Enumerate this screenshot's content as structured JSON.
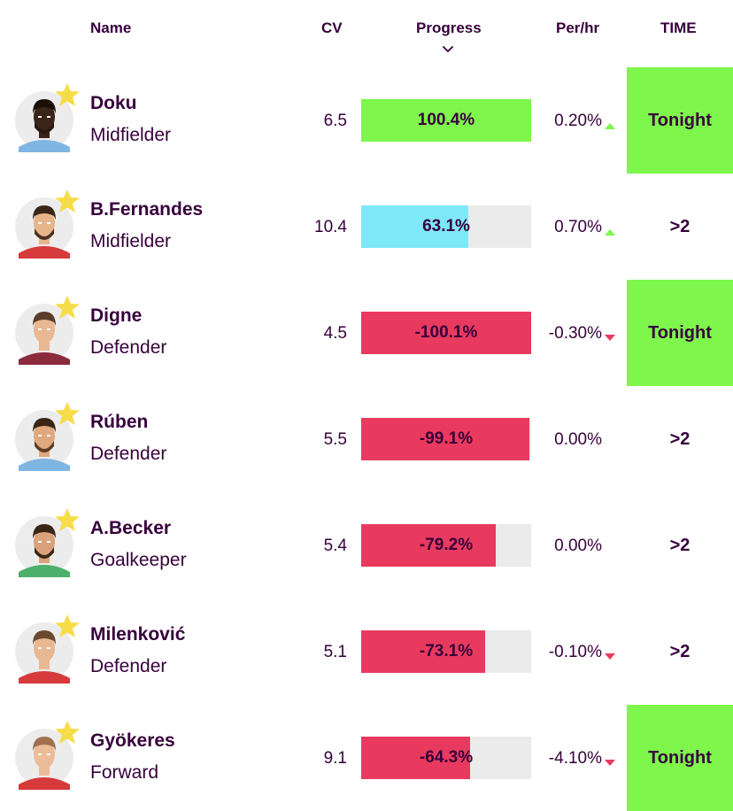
{
  "headers": {
    "name": "Name",
    "cv": "CV",
    "progress": "Progress",
    "per_hr": "Per/hr",
    "time": "TIME"
  },
  "sort_icon": "chevron-down-icon",
  "colors": {
    "positive_bar": "#7ef64c",
    "highlight_bar": "#7ee8f8",
    "negative_bar": "#e83a5e",
    "tonight_bg": "#7ef64c",
    "up_arrow": "#7ef64c",
    "down_arrow": "#e83a5e",
    "track": "#ebebeb"
  },
  "players": [
    {
      "name": "Doku",
      "position": "Midfielder",
      "cv": "6.5",
      "progress": "100.4%",
      "progress_value": 100.4,
      "bar_color": "#7ef64c",
      "per_hr": "0.20%",
      "trend": "up",
      "time": "Tonight",
      "time_highlight": true,
      "shirt": "#7fb5e3",
      "skin": "#3b2518",
      "hair": "#1a1008",
      "beard": "#2a1a10"
    },
    {
      "name": "B.Fernandes",
      "position": "Midfielder",
      "cv": "10.4",
      "progress": "63.1%",
      "progress_value": 63.1,
      "bar_color": "#7ee8f8",
      "per_hr": "0.70%",
      "trend": "up",
      "time": ">2",
      "time_highlight": false,
      "shirt": "#d63a3a",
      "skin": "#e7b58c",
      "hair": "#3a2617",
      "beard": "#4a3020"
    },
    {
      "name": "Digne",
      "position": "Defender",
      "cv": "4.5",
      "progress": "-100.1%",
      "progress_value": -100.1,
      "bar_color": "#e83a5e",
      "per_hr": "-0.30%",
      "trend": "down",
      "time": "Tonight",
      "time_highlight": true,
      "shirt": "#8a2b3e",
      "skin": "#e8b893",
      "hair": "#5a3e2a",
      "beard": ""
    },
    {
      "name": "Rúben",
      "position": "Defender",
      "cv": "5.5",
      "progress": "-99.1%",
      "progress_value": -99.1,
      "bar_color": "#e83a5e",
      "per_hr": "0.00%",
      "trend": "none",
      "time": ">2",
      "time_highlight": false,
      "shirt": "#7fb5e3",
      "skin": "#e0a87e",
      "hair": "#3a2617",
      "beard": "#5a3e2a"
    },
    {
      "name": "A.Becker",
      "position": "Goalkeeper",
      "cv": "5.4",
      "progress": "-79.2%",
      "progress_value": -79.2,
      "bar_color": "#e83a5e",
      "per_hr": "0.00%",
      "trend": "none",
      "time": ">2",
      "time_highlight": false,
      "shirt": "#4caf6a",
      "skin": "#d9a27a",
      "hair": "#3a2617",
      "beard": "#3a2617"
    },
    {
      "name": "Milenković",
      "position": "Defender",
      "cv": "5.1",
      "progress": "-73.1%",
      "progress_value": -73.1,
      "bar_color": "#e83a5e",
      "per_hr": "-0.10%",
      "trend": "down",
      "time": ">2",
      "time_highlight": false,
      "shirt": "#d63a3a",
      "skin": "#e8b893",
      "hair": "#6a4a30",
      "beard": ""
    },
    {
      "name": "Gyökeres",
      "position": "Forward",
      "cv": "9.1",
      "progress": "-64.3%",
      "progress_value": -64.3,
      "bar_color": "#e83a5e",
      "per_hr": "-4.10%",
      "trend": "down",
      "time": "Tonight",
      "time_highlight": true,
      "shirt": "#d63a3a",
      "skin": "#ecbc98",
      "hair": "#a07050",
      "beard": ""
    }
  ]
}
